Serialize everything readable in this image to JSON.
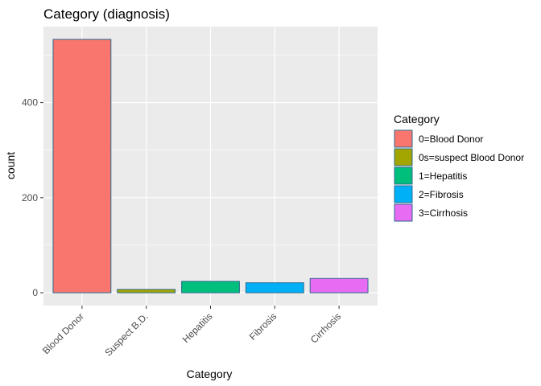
{
  "chart_data": {
    "type": "bar",
    "title": "Category (diagnosis)",
    "xlabel": "Category",
    "ylabel": "count",
    "categories": [
      "Blood Donor",
      "Suspect B.D.",
      "Hepatitis",
      "Fibrosis",
      "Cirrhosis"
    ],
    "values": [
      533,
      7,
      24,
      21,
      30
    ],
    "ylim": [
      -27,
      560
    ],
    "yticks": [
      0,
      200,
      400
    ],
    "grid": true,
    "legend": {
      "title": "Category",
      "position": "right",
      "entries": [
        "0=Blood Donor",
        "0s=suspect Blood Donor",
        "1=Hepatitis",
        "2=Fibrosis",
        "3=Cirrhosis"
      ]
    },
    "colors": [
      "#F8766D",
      "#A3A500",
      "#00BF7D",
      "#00B0F6",
      "#E76BF3"
    ],
    "bar_outline_color": "#2E6A8E",
    "panel_color": "#EBEBEB",
    "gridline_color": "#FFFFFF"
  }
}
